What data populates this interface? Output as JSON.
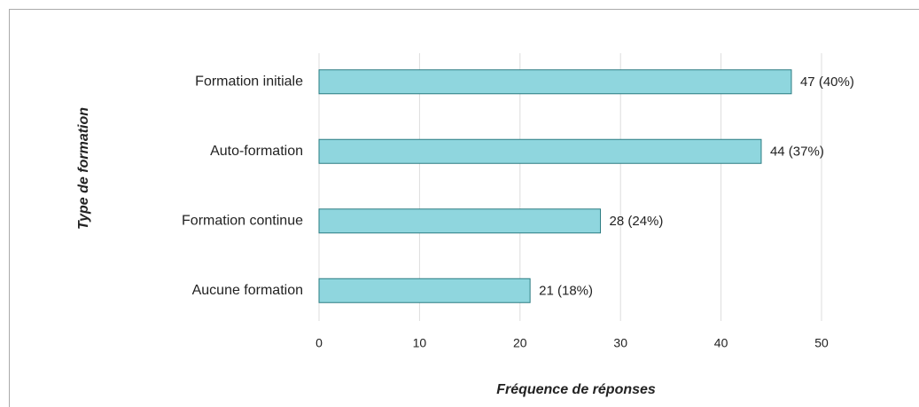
{
  "chart_data": {
    "type": "hbar",
    "categories": [
      "Formation initiale",
      "Auto-formation",
      "Formation continue",
      "Aucune formation"
    ],
    "values": [
      47,
      44,
      28,
      21
    ],
    "value_labels": [
      "47 (40%)",
      "44 (37%)",
      "28 (24%)",
      "21 (18%)"
    ],
    "color": "#8fd6de",
    "edge_color": "#2b7c82",
    "xlabel": "Fréquence de réponses",
    "ylabel": "Type de formation",
    "xlim": [
      0,
      55
    ],
    "xticks": [
      0,
      10,
      20,
      30,
      40,
      50
    ],
    "grid": true
  }
}
